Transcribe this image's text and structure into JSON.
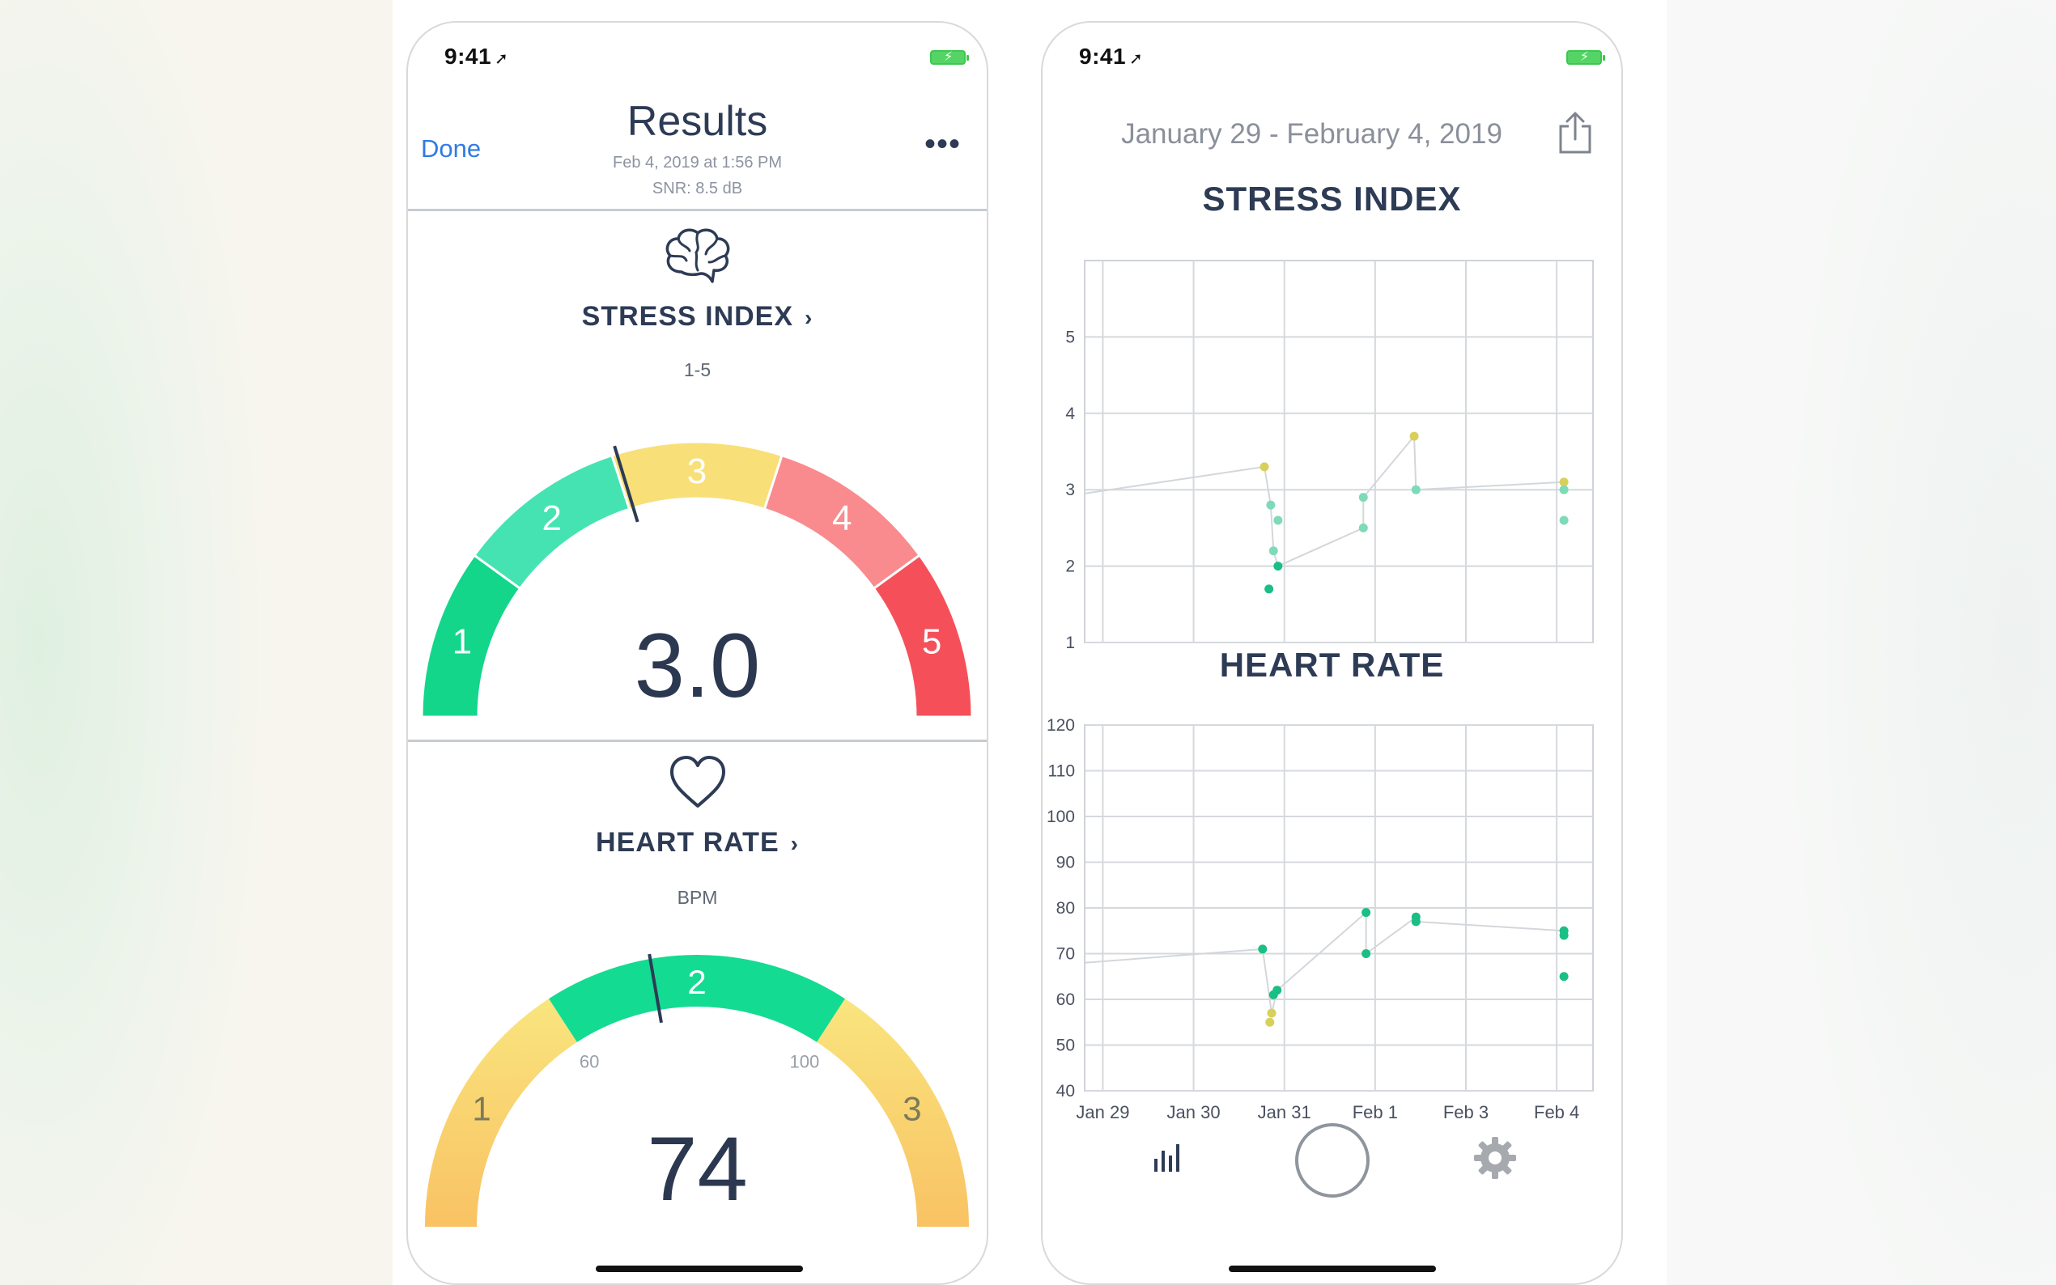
{
  "colors": {
    "accent": "#2f7be5",
    "navy": "#2d3b55",
    "stress_green": "#13d68b",
    "stress_mint": "#45e3b2",
    "stress_yellow": "#f8df78",
    "stress_pink": "#f98b8e",
    "stress_red": "#f5505a",
    "hr_green": "#14db92",
    "hr_yellow": "#f9e57e",
    "hr_orange": "#f9c263",
    "point_yellow": "#d8d05b",
    "point_teal": "#7fdab8",
    "point_green": "#19bf84"
  },
  "left_phone": {
    "status": {
      "time": "9:41",
      "location_glyph": "➚",
      "battery_glyph": "⚡"
    },
    "nav": {
      "done_label": "Done",
      "title": "Results",
      "subtitle_date": "Feb 4, 2019 at 1:56 PM",
      "subtitle_snr": "SNR: 8.5 dB",
      "more_label": "•••"
    },
    "stress": {
      "icon": "brain-icon",
      "title": "STRESS INDEX",
      "chevron": "›",
      "unit": "1-5",
      "value": "3.0",
      "needle_value": 2.53,
      "segments": [
        {
          "label": "1",
          "color": "#13d68b"
        },
        {
          "label": "2",
          "color": "#45e3b2"
        },
        {
          "label": "3",
          "color": "#f8df78"
        },
        {
          "label": "4",
          "color": "#f98b8e"
        },
        {
          "label": "5",
          "color": "#f5505a"
        }
      ]
    },
    "heart": {
      "icon": "heart-icon",
      "title": "HEART RATE",
      "chevron": "›",
      "unit": "BPM",
      "value": "74",
      "needle_value": 74,
      "range_low": "60",
      "range_high": "100",
      "zone_labels": [
        "1",
        "2",
        "3"
      ]
    }
  },
  "right_phone": {
    "status": {
      "time": "9:41",
      "location_glyph": "➚",
      "battery_glyph": "⚡"
    },
    "date_range": "January 29 - February 4, 2019",
    "share_icon": "share-icon",
    "tabbar": {
      "left_icon": "bar-chart-icon",
      "center_icon": "record-button-icon",
      "right_icon": "gear-icon"
    }
  },
  "chart_data": [
    {
      "type": "scatter",
      "title": "STRESS INDEX",
      "xlabel": "",
      "ylabel": "",
      "ylim": [
        1,
        6
      ],
      "yticks": [
        "1",
        "2",
        "3",
        "4",
        "5"
      ],
      "x_range": [
        -0.2,
        5.4
      ],
      "trend_line_left": [
        2.95,
        3.3
      ],
      "points": [
        {
          "x": 1.78,
          "y": 3.3,
          "c": "point_yellow"
        },
        {
          "x": 1.85,
          "y": 2.8,
          "c": "point_teal"
        },
        {
          "x": 1.93,
          "y": 2.6,
          "c": "point_teal"
        },
        {
          "x": 1.88,
          "y": 2.2,
          "c": "point_teal"
        },
        {
          "x": 1.93,
          "y": 2.0,
          "c": "point_green"
        },
        {
          "x": 1.83,
          "y": 1.7,
          "c": "point_green"
        },
        {
          "x": 2.87,
          "y": 2.9,
          "c": "point_teal"
        },
        {
          "x": 2.87,
          "y": 2.5,
          "c": "point_teal"
        },
        {
          "x": 3.43,
          "y": 3.7,
          "c": "point_yellow"
        },
        {
          "x": 3.45,
          "y": 3.0,
          "c": "point_teal"
        },
        {
          "x": 5.08,
          "y": 3.1,
          "c": "point_yellow"
        },
        {
          "x": 5.08,
          "y": 3.0,
          "c": "point_teal"
        },
        {
          "x": 5.08,
          "y": 2.6,
          "c": "point_teal"
        }
      ],
      "line_segments": [
        [
          [
            1.78,
            3.3
          ],
          [
            1.85,
            2.8
          ]
        ],
        [
          [
            1.85,
            2.8
          ],
          [
            1.88,
            2.2
          ]
        ],
        [
          [
            1.88,
            2.2
          ],
          [
            1.93,
            2.0
          ]
        ],
        [
          [
            1.93,
            2.0
          ],
          [
            2.87,
            2.5
          ]
        ],
        [
          [
            2.87,
            2.5
          ],
          [
            2.87,
            2.9
          ]
        ],
        [
          [
            2.87,
            2.9
          ],
          [
            3.43,
            3.7
          ]
        ],
        [
          [
            3.43,
            3.7
          ],
          [
            3.45,
            3.0
          ]
        ],
        [
          [
            3.45,
            3.0
          ],
          [
            5.08,
            3.1
          ]
        ]
      ]
    },
    {
      "type": "scatter",
      "title": "HEART RATE",
      "xlabel": "",
      "ylabel": "",
      "ylim": [
        40,
        120
      ],
      "yticks": [
        "40",
        "50",
        "60",
        "70",
        "80",
        "90",
        "100",
        "110",
        "120"
      ],
      "x_range": [
        -0.2,
        5.4
      ],
      "xticks": [
        "Jan 29",
        "Jan 30",
        "Jan 31",
        "Feb 1",
        "Feb 3",
        "Feb 4"
      ],
      "trend_line_left": [
        68,
        71
      ],
      "points": [
        {
          "x": 1.76,
          "y": 71,
          "c": "point_green"
        },
        {
          "x": 1.92,
          "y": 62,
          "c": "point_green"
        },
        {
          "x": 1.88,
          "y": 61,
          "c": "point_green"
        },
        {
          "x": 1.86,
          "y": 57,
          "c": "point_yellow"
        },
        {
          "x": 1.84,
          "y": 55,
          "c": "point_yellow"
        },
        {
          "x": 2.9,
          "y": 79,
          "c": "point_green"
        },
        {
          "x": 2.9,
          "y": 70,
          "c": "point_green"
        },
        {
          "x": 3.45,
          "y": 78,
          "c": "point_green"
        },
        {
          "x": 3.45,
          "y": 77,
          "c": "point_green"
        },
        {
          "x": 5.08,
          "y": 75,
          "c": "point_green"
        },
        {
          "x": 5.08,
          "y": 74,
          "c": "point_green"
        },
        {
          "x": 5.08,
          "y": 65,
          "c": "point_green"
        }
      ],
      "line_segments": [
        [
          [
            1.76,
            71
          ],
          [
            1.86,
            57
          ]
        ],
        [
          [
            1.86,
            57
          ],
          [
            1.92,
            62
          ]
        ],
        [
          [
            1.92,
            62
          ],
          [
            2.9,
            79
          ]
        ],
        [
          [
            2.9,
            79
          ],
          [
            2.9,
            70
          ]
        ],
        [
          [
            2.9,
            70
          ],
          [
            3.45,
            78
          ]
        ],
        [
          [
            3.45,
            77
          ],
          [
            5.08,
            75
          ]
        ]
      ]
    }
  ]
}
